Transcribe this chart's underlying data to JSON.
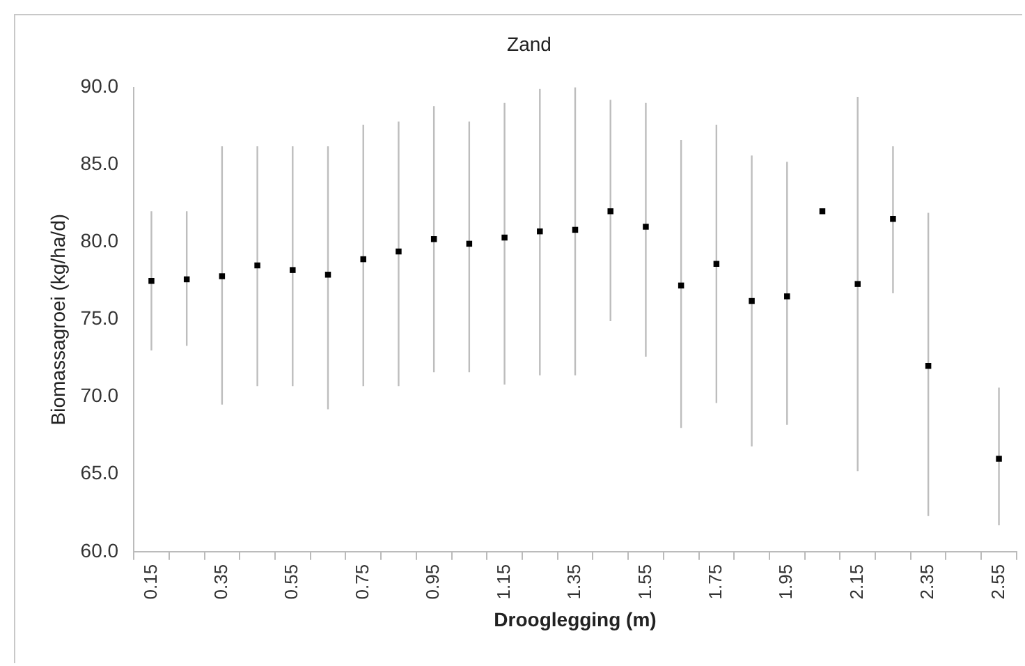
{
  "chart_data": {
    "type": "scatter",
    "title": "Zand",
    "xlabel": "Drooglegging (m)",
    "ylabel": "Biomassagroei (kg/ha/d)",
    "categories": [
      "0.15",
      null,
      "0.35",
      null,
      "0.55",
      null,
      "0.75",
      null,
      "0.95",
      null,
      "1.15",
      null,
      "1.35",
      null,
      "1.55",
      null,
      "1.75",
      null,
      "1.95",
      null,
      "2.15",
      null,
      "2.35",
      null,
      "2.55"
    ],
    "series": [
      {
        "color": "#000000",
        "values": [
          77.5,
          77.6,
          77.8,
          78.5,
          78.2,
          77.9,
          78.9,
          79.4,
          80.2,
          79.9,
          80.3,
          80.7,
          80.8,
          82.0,
          81.0,
          77.2,
          78.6,
          76.2,
          76.5,
          82.0,
          77.3,
          81.5,
          72.0,
          null,
          66.0
        ],
        "errors": [
          [
            73.0,
            82.0
          ],
          [
            73.3,
            82.0
          ],
          [
            69.5,
            86.2
          ],
          [
            70.7,
            86.2
          ],
          [
            70.7,
            86.2
          ],
          [
            69.2,
            86.2
          ],
          [
            70.7,
            87.6
          ],
          [
            70.7,
            87.8
          ],
          [
            71.6,
            88.8
          ],
          [
            71.6,
            87.8
          ],
          [
            70.8,
            89.0
          ],
          [
            71.4,
            89.9
          ],
          [
            71.4,
            90.0
          ],
          [
            74.9,
            89.2
          ],
          [
            72.6,
            89.0
          ],
          [
            68.0,
            86.6
          ],
          [
            69.6,
            87.6
          ],
          [
            66.8,
            85.6
          ],
          [
            68.2,
            85.2
          ],
          null,
          [
            65.2,
            89.4
          ],
          [
            76.7,
            86.2
          ],
          [
            62.3,
            81.9
          ],
          null,
          [
            61.7,
            70.6
          ]
        ]
      }
    ],
    "ylim": [
      60,
      90
    ],
    "yticks": [
      {
        "value": 60,
        "label": "60.0"
      },
      {
        "value": 65,
        "label": "65.0"
      },
      {
        "value": 70,
        "label": "70.0"
      },
      {
        "value": 75,
        "label": "75.0"
      },
      {
        "value": 80,
        "label": "80.0"
      },
      {
        "value": 85,
        "label": "85.0"
      },
      {
        "value": 90,
        "label": "90.0"
      }
    ],
    "marker": "square",
    "grid": false,
    "legend": false
  }
}
